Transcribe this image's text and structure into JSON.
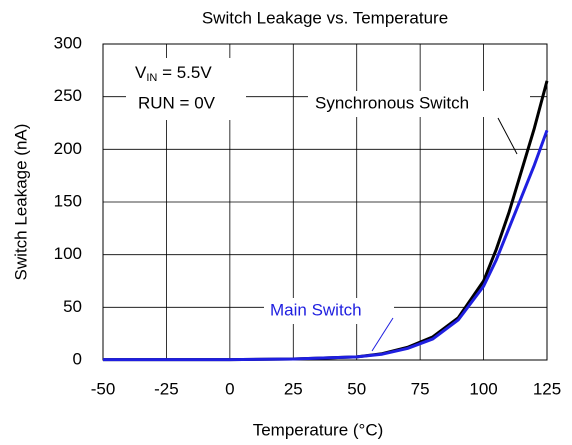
{
  "chart_data": {
    "type": "line",
    "title": "Switch Leakage vs. Temperature",
    "x_label": "Temperature (°C)",
    "y_label": "Switch Leakage (nA)",
    "annotations": {
      "vin_main": "V",
      "vin_sub": "IN",
      "vin_rest": " = 5.5V",
      "run": "RUN = 0V"
    },
    "x": [
      -50,
      -25,
      0,
      25,
      50,
      60,
      70,
      80,
      90,
      100,
      105,
      110,
      115,
      120,
      125
    ],
    "series": [
      {
        "name": "Synchronous Switch",
        "color": "#000000",
        "values": [
          0.3,
          0.3,
          0.4,
          1,
          3,
          6,
          12,
          22,
          40,
          75,
          105,
          140,
          180,
          220,
          265
        ]
      },
      {
        "name": "Main Switch",
        "color": "#1f1fe0",
        "values": [
          0.3,
          0.3,
          0.4,
          1,
          3,
          5.5,
          11,
          20,
          38,
          70,
          95,
          125,
          155,
          185,
          218
        ]
      }
    ],
    "xlim": [
      -50,
      125
    ],
    "xticks": [
      -50,
      -25,
      0,
      25,
      50,
      75,
      100,
      125
    ],
    "ylim": [
      0,
      300
    ],
    "yticks": [
      0,
      50,
      100,
      150,
      200,
      250,
      300
    ],
    "grid": true
  }
}
